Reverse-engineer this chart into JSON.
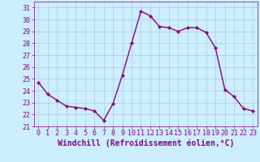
{
  "x": [
    0,
    1,
    2,
    3,
    4,
    5,
    6,
    7,
    8,
    9,
    10,
    11,
    12,
    13,
    14,
    15,
    16,
    17,
    18,
    19,
    20,
    21,
    22,
    23
  ],
  "y": [
    24.7,
    23.7,
    23.2,
    22.7,
    22.6,
    22.5,
    22.3,
    21.5,
    22.9,
    25.3,
    28.0,
    30.7,
    30.3,
    29.4,
    29.3,
    29.0,
    29.3,
    29.3,
    28.9,
    27.6,
    24.1,
    23.5,
    22.5,
    22.3
  ],
  "xlim": [
    -0.5,
    23.5
  ],
  "ylim": [
    21,
    31.5
  ],
  "yticks": [
    21,
    22,
    23,
    24,
    25,
    26,
    27,
    28,
    29,
    30,
    31
  ],
  "xticks": [
    0,
    1,
    2,
    3,
    4,
    5,
    6,
    7,
    8,
    9,
    10,
    11,
    12,
    13,
    14,
    15,
    16,
    17,
    18,
    19,
    20,
    21,
    22,
    23
  ],
  "xlabel": "Windchill (Refroidissement éolien,°C)",
  "line_color": "#880088",
  "marker": "D",
  "marker_size": 2.0,
  "line_width": 1.0,
  "bg_color": "#cceeff",
  "grid_color": "#aacccc",
  "xlabel_fontsize": 7,
  "tick_fontsize": 6,
  "tick_color": "#880088",
  "label_color": "#880088"
}
